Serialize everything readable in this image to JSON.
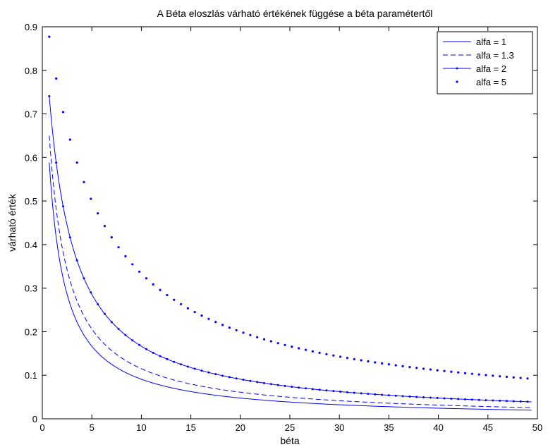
{
  "chart_data": {
    "type": "line",
    "title": "A Béta eloszlás várható értékének függése a béta paramétertől",
    "xlabel": "béta",
    "ylabel": "várható érték",
    "xlim": [
      0,
      50
    ],
    "ylim": [
      0,
      0.9
    ],
    "xticks": [
      "0",
      "5",
      "10",
      "15",
      "20",
      "25",
      "30",
      "35",
      "40",
      "45",
      "50"
    ],
    "yticks": [
      "0",
      "0.1",
      "0.2",
      "0.3",
      "0.4",
      "0.5",
      "0.6",
      "0.7",
      "0.8",
      "0.9"
    ],
    "grid": false,
    "legend_position": "top-right",
    "color": "#0000ff",
    "beta_range": [
      0.7,
      49.4
    ],
    "series": [
      {
        "name": "alfa = 1",
        "alpha": 1,
        "style": "solid"
      },
      {
        "name": "alfa = 1.3",
        "alpha": 1.3,
        "style": "dashed"
      },
      {
        "name": "alfa = 2",
        "alpha": 2,
        "style": "solid-dot"
      },
      {
        "name": "alfa = 5",
        "alpha": 5,
        "style": "dots"
      }
    ],
    "sample_values": {
      "alfa = 1": [
        [
          0.7,
          0.588
        ],
        [
          5,
          0.167
        ],
        [
          10,
          0.091
        ],
        [
          20,
          0.048
        ],
        [
          49.4,
          0.02
        ]
      ],
      "alfa = 1.3": [
        [
          0.7,
          0.65
        ],
        [
          5,
          0.206
        ],
        [
          10,
          0.115
        ],
        [
          20,
          0.061
        ],
        [
          49.4,
          0.026
        ]
      ],
      "alfa = 2": [
        [
          0.7,
          0.741
        ],
        [
          5,
          0.286
        ],
        [
          10,
          0.167
        ],
        [
          20,
          0.091
        ],
        [
          49.4,
          0.039
        ]
      ],
      "alfa = 5": [
        [
          0.7,
          0.877
        ],
        [
          5,
          0.5
        ],
        [
          10,
          0.333
        ],
        [
          20,
          0.2
        ],
        [
          49.4,
          0.092
        ]
      ]
    }
  }
}
